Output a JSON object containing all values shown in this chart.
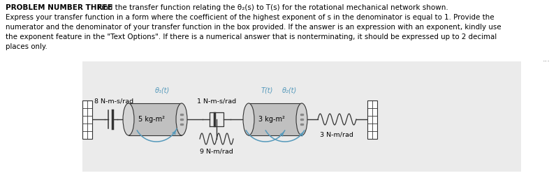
{
  "title_bold": "PROBLEM NUMBER THREE",
  "title_rest": "            Find the transfer function relating the θ₂(s) to T(s) for the rotational mechanical network shown.",
  "line2": "Express your transfer function in a form where the coefficient of the highest exponent of s in the denominator is equal to 1. Provide the",
  "line3": "numerator and the denominator of your transfer function in the box provided. If the answer is an expression with an exponent, kindly use",
  "line4": "the exponent feature in the \"Text Options\". If there is a numerical answer that is nonterminating, it should be expressed up to 2 decimal",
  "line5": "places only.",
  "cyan": "#5599bb",
  "lc": "#333333",
  "label_8": "8 N-m-s/rad",
  "label_5": "5 kg-m²",
  "label_1": "1 N-m-s/rad",
  "label_9": "9 N-m/rad",
  "label_T": "T(t)",
  "label_th1": "θ₁(t)",
  "label_th2": "θ₂(t)",
  "label_3kg": "3 kg-m²",
  "label_3Nm": "3 N-m/rad",
  "dots": "..."
}
